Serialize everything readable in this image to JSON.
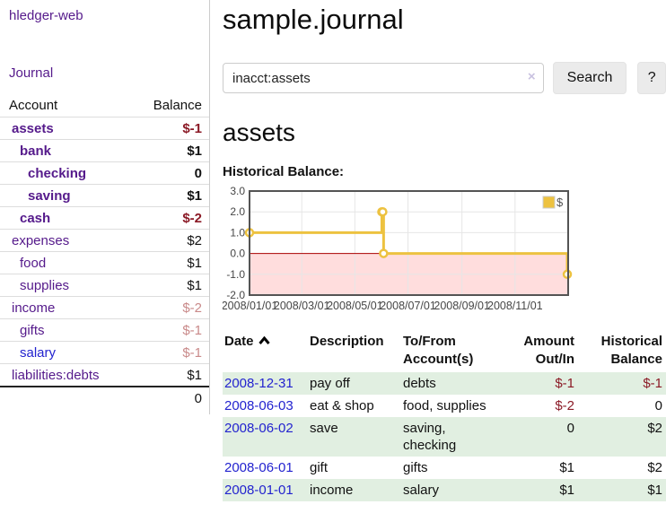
{
  "app": {
    "brand": "hledger-web",
    "nav_journal": "Journal"
  },
  "colors": {
    "link_purple": "#551a8b",
    "link_blue": "#2323cf",
    "neg_strong": "#8b1a26",
    "neg_muted": "#c98a8a",
    "row_green": "#e1efe1"
  },
  "sidebar": {
    "headers": {
      "account": "Account",
      "balance": "Balance"
    },
    "accounts": [
      {
        "name": "assets",
        "balance": "$-1",
        "indent": 1,
        "bold": true,
        "neg": "strong",
        "link": "purple"
      },
      {
        "name": "bank",
        "balance": "$1",
        "indent": 2,
        "bold": true,
        "neg": "none",
        "link": "purple"
      },
      {
        "name": "checking",
        "balance": "0",
        "indent": 3,
        "bold": true,
        "neg": "none",
        "link": "purple"
      },
      {
        "name": "saving",
        "balance": "$1",
        "indent": 3,
        "bold": true,
        "neg": "none",
        "link": "purple"
      },
      {
        "name": "cash",
        "balance": "$-2",
        "indent": 2,
        "bold": true,
        "neg": "strong",
        "link": "purple"
      },
      {
        "name": "expenses",
        "balance": "$2",
        "indent": 1,
        "bold": false,
        "neg": "none",
        "link": "purple"
      },
      {
        "name": "food",
        "balance": "$1",
        "indent": 2,
        "bold": false,
        "neg": "none",
        "link": "purple"
      },
      {
        "name": "supplies",
        "balance": "$1",
        "indent": 2,
        "bold": false,
        "neg": "none",
        "link": "purple"
      },
      {
        "name": "income",
        "balance": "$-2",
        "indent": 1,
        "bold": false,
        "neg": "muted",
        "link": "purple"
      },
      {
        "name": "gifts",
        "balance": "$-1",
        "indent": 2,
        "bold": false,
        "neg": "muted",
        "link": "purple"
      },
      {
        "name": "salary",
        "balance": "$-1",
        "indent": 2,
        "bold": false,
        "neg": "muted",
        "link": "blue"
      },
      {
        "name": "liabilities:debts",
        "balance": "$1",
        "indent": 1,
        "bold": false,
        "neg": "none",
        "link": "purple"
      }
    ],
    "total": "0"
  },
  "header": {
    "title": "sample.journal"
  },
  "search": {
    "value": "inacct:assets",
    "clear_label": "×",
    "button_label": "Search",
    "help_label": "?"
  },
  "account_page": {
    "title": "assets",
    "chart_label": "Historical Balance:"
  },
  "chart_data": {
    "type": "line",
    "step": true,
    "title": "Historical Balance",
    "series": [
      {
        "name": "$",
        "color": "#edc240",
        "points": [
          [
            "2008-01-01",
            1
          ],
          [
            "2008-06-01",
            2
          ],
          [
            "2008-06-02",
            2
          ],
          [
            "2008-06-03",
            0
          ],
          [
            "2008-12-31",
            -1
          ]
        ]
      }
    ],
    "x_range": [
      "2008-01-01",
      "2009-01-01"
    ],
    "x_ticks": [
      {
        "date": "2008-01-01",
        "label": "2008/01/01"
      },
      {
        "date": "2008-03-01",
        "label": "2008/03/01"
      },
      {
        "date": "2008-05-01",
        "label": "2008/05/01"
      },
      {
        "date": "2008-07-01",
        "label": "2008/07/01"
      },
      {
        "date": "2008-09-01",
        "label": "2008/09/01"
      },
      {
        "date": "2008-11-01",
        "label": "2008/11/01"
      }
    ],
    "ylim": [
      -2,
      3
    ],
    "y_ticks": [
      {
        "v": 3,
        "label": "3.0"
      },
      {
        "v": 2,
        "label": "2.0"
      },
      {
        "v": 1,
        "label": "1.0"
      },
      {
        "v": 0,
        "label": "0.0"
      },
      {
        "v": -1,
        "label": "-1.0"
      },
      {
        "v": -2,
        "label": "-2.0"
      }
    ],
    "grid": true,
    "negative_region_color": "#ffdddd",
    "zero_line_color": "#aa0000",
    "border_color": "#545454",
    "grid_color": "#e6e6e6",
    "tick_label_color": "#464646",
    "legend": {
      "label": "$",
      "position": "top-right"
    }
  },
  "register": {
    "columns": [
      {
        "label": "Date",
        "align": "left",
        "sorted": "asc"
      },
      {
        "label": "Description",
        "align": "left"
      },
      {
        "label": "To/From Account(s)",
        "align": "left"
      },
      {
        "label": "Amount Out/In",
        "align": "right"
      },
      {
        "label": "Historical Balance",
        "align": "right"
      }
    ],
    "rows": [
      {
        "date": "2008-12-31",
        "description": "pay off",
        "accounts": "debts",
        "amount": "$-1",
        "amount_neg": true,
        "balance": "$-1",
        "balance_neg": true
      },
      {
        "date": "2008-06-03",
        "description": "eat & shop",
        "accounts": "food, supplies",
        "amount": "$-2",
        "amount_neg": true,
        "balance": "0",
        "balance_neg": false
      },
      {
        "date": "2008-06-02",
        "description": "save",
        "accounts": "saving, checking",
        "amount": "0",
        "amount_neg": false,
        "balance": "$2",
        "balance_neg": false
      },
      {
        "date": "2008-06-01",
        "description": "gift",
        "accounts": "gifts",
        "amount": "$1",
        "amount_neg": false,
        "balance": "$2",
        "balance_neg": false
      },
      {
        "date": "2008-01-01",
        "description": "income",
        "accounts": "salary",
        "amount": "$1",
        "amount_neg": false,
        "balance": "$1",
        "balance_neg": false
      }
    ]
  }
}
